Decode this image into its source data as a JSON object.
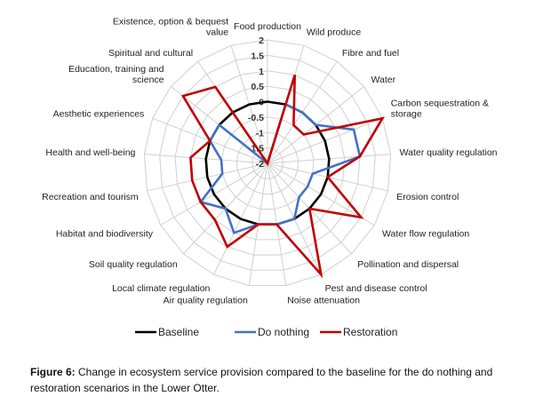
{
  "chart_data": {
    "type": "radar",
    "axes": [
      [
        "Food production"
      ],
      [
        "Wild produce"
      ],
      [
        "Fibre and fuel"
      ],
      [
        "Water"
      ],
      [
        "Carbon sequestration &",
        "storage"
      ],
      [
        "Water quality regulation"
      ],
      [
        "Erosion control"
      ],
      [
        "Water flow regulation"
      ],
      [
        "Pollination and dispersal"
      ],
      [
        "Pest and disease control"
      ],
      [
        "Noise attenuation"
      ],
      [
        "Air quality regulation"
      ],
      [
        "Local climate regulation"
      ],
      [
        "Soil quality regulation"
      ],
      [
        "Habitat and biodiversity"
      ],
      [
        "Recreation and tourism"
      ],
      [
        "Health and well-being"
      ],
      [
        "Aesthetic experiences"
      ],
      [
        "Education, training and",
        "science"
      ],
      [
        "Spiritual and cultural"
      ],
      [
        "Existence, option & bequest",
        "value"
      ]
    ],
    "rlim": [
      -2,
      2
    ],
    "ticks": [
      "-2",
      "-1.5",
      "-1",
      "-0.5",
      "0",
      "0.5",
      "1",
      "1.5",
      "2"
    ],
    "tick_values": [
      -2,
      -1.5,
      -1,
      -0.5,
      0,
      0.5,
      1,
      1.5,
      2
    ],
    "series": [
      {
        "name": "Baseline",
        "color": "#000000",
        "values": [
          0,
          0,
          0,
          0,
          0,
          0,
          0,
          0,
          0,
          0,
          0,
          0,
          0,
          0,
          0,
          0,
          0,
          0,
          0,
          0,
          0
        ]
      },
      {
        "name": "Do nothing",
        "color": "#4472c4",
        "values": [
          -2,
          0,
          0,
          0,
          1,
          1,
          -0.5,
          -0.5,
          -0.5,
          0,
          0,
          0,
          0.5,
          0,
          0.5,
          -0.5,
          -0.5,
          0,
          0,
          -2,
          -2
        ]
      },
      {
        "name": "Restoration",
        "color": "#c00000",
        "values": [
          -2,
          1,
          -0.5,
          -0.5,
          2,
          1,
          0,
          1.5,
          0,
          2,
          0,
          0,
          1,
          0.5,
          0.5,
          0.5,
          0.5,
          0,
          1.5,
          1,
          -2
        ]
      }
    ],
    "grid": true,
    "legend": "bottom"
  },
  "caption": {
    "lead": "Figure 6:",
    "text": " Change in ecosystem service provision compared to the baseline for the do nothing and restoration scenarios in the Lower Otter."
  }
}
